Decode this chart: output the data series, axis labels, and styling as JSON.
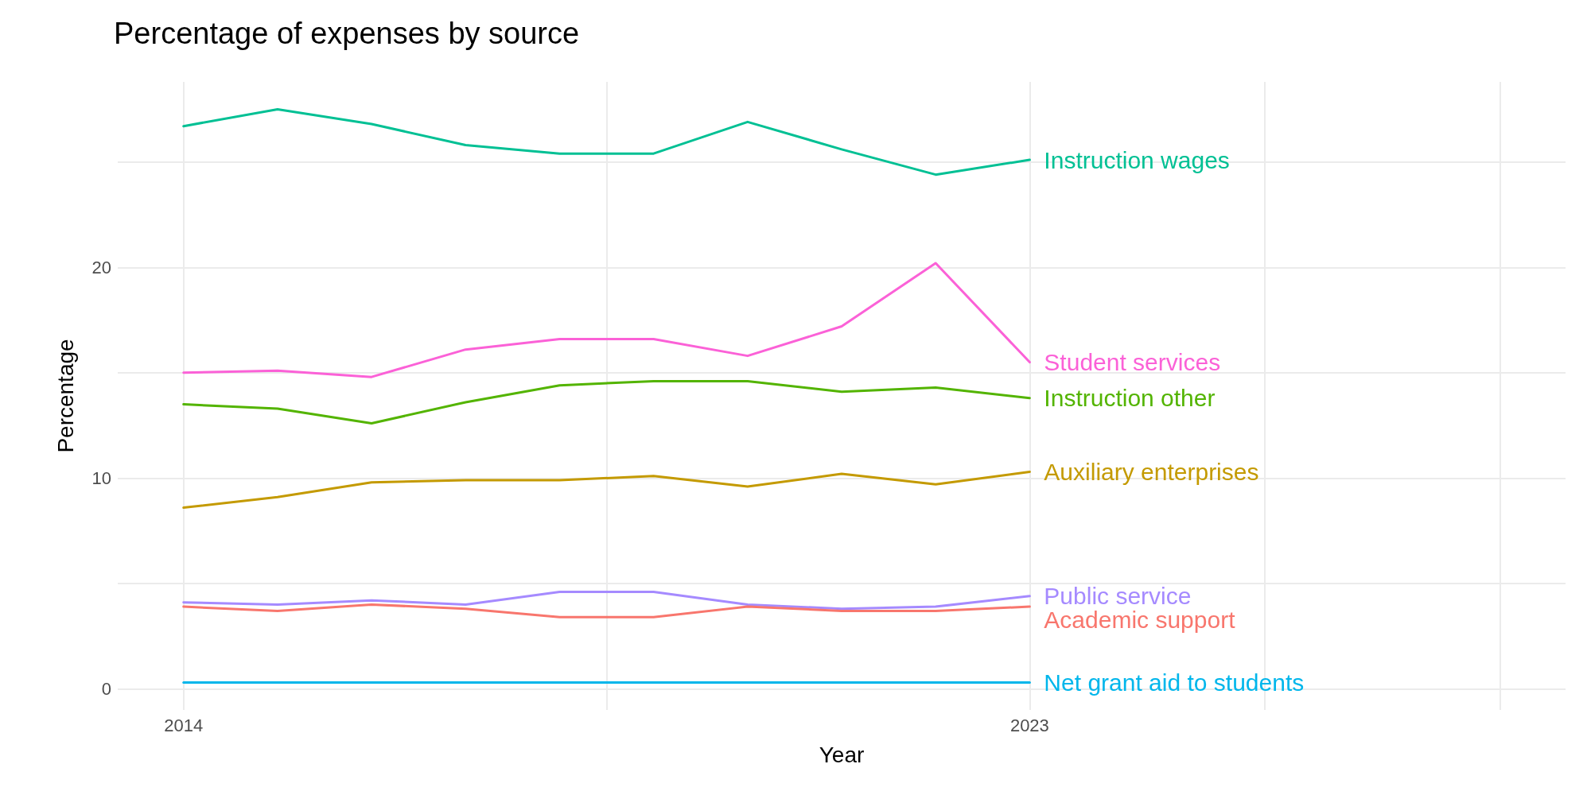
{
  "chart_data": {
    "type": "line",
    "title": "Percentage of expenses by source",
    "xlabel": "Year",
    "ylabel": "Percentage",
    "x": [
      2014,
      2015,
      2016,
      2017,
      2018,
      2019,
      2020,
      2021,
      2022,
      2023
    ],
    "xlim": [
      2013.3,
      2028.7
    ],
    "xticks": [
      2014,
      {
        "value": 2018.5,
        "label": null
      },
      2023,
      {
        "value": 2025.5,
        "label": null
      },
      {
        "value": 2028,
        "label": null
      }
    ],
    "ylim": [
      -1,
      28.8
    ],
    "yticks": [
      0,
      {
        "value": 5,
        "label": null
      },
      10,
      {
        "value": 15,
        "label": null
      },
      20,
      {
        "value": 25,
        "label": null
      }
    ],
    "grid": true,
    "legend": false,
    "marker": "none",
    "line_style": "solid",
    "series": [
      {
        "name": "Instruction wages",
        "color": "#00c094",
        "values": [
          26.7,
          27.5,
          26.8,
          25.8,
          25.4,
          25.4,
          26.9,
          25.6,
          24.4,
          25.1
        ]
      },
      {
        "name": "Student services",
        "color": "#fb61d7",
        "values": [
          15.0,
          15.1,
          14.8,
          16.1,
          16.6,
          16.6,
          15.8,
          17.2,
          20.2,
          15.5
        ]
      },
      {
        "name": "Instruction other",
        "color": "#53b400",
        "values": [
          13.5,
          13.3,
          12.6,
          13.6,
          14.4,
          14.6,
          14.6,
          14.1,
          14.3,
          13.8
        ]
      },
      {
        "name": "Auxiliary enterprises",
        "color": "#c49a00",
        "values": [
          8.6,
          9.1,
          9.8,
          9.9,
          9.9,
          10.1,
          9.6,
          10.2,
          9.7,
          10.3
        ]
      },
      {
        "name": "Public service",
        "color": "#a58aff",
        "values": [
          4.1,
          4.0,
          4.2,
          4.0,
          4.6,
          4.6,
          4.0,
          3.8,
          3.9,
          4.4
        ]
      },
      {
        "name": "Academic support",
        "color": "#f8766d",
        "values": [
          3.9,
          3.7,
          4.0,
          3.8,
          3.4,
          3.4,
          3.9,
          3.7,
          3.7,
          3.9
        ]
      },
      {
        "name": "Net grant aid to students",
        "color": "#00b6eb",
        "values": [
          0.3,
          0.3,
          0.3,
          0.3,
          0.3,
          0.3,
          0.3,
          0.3,
          0.3,
          0.3
        ]
      }
    ]
  }
}
